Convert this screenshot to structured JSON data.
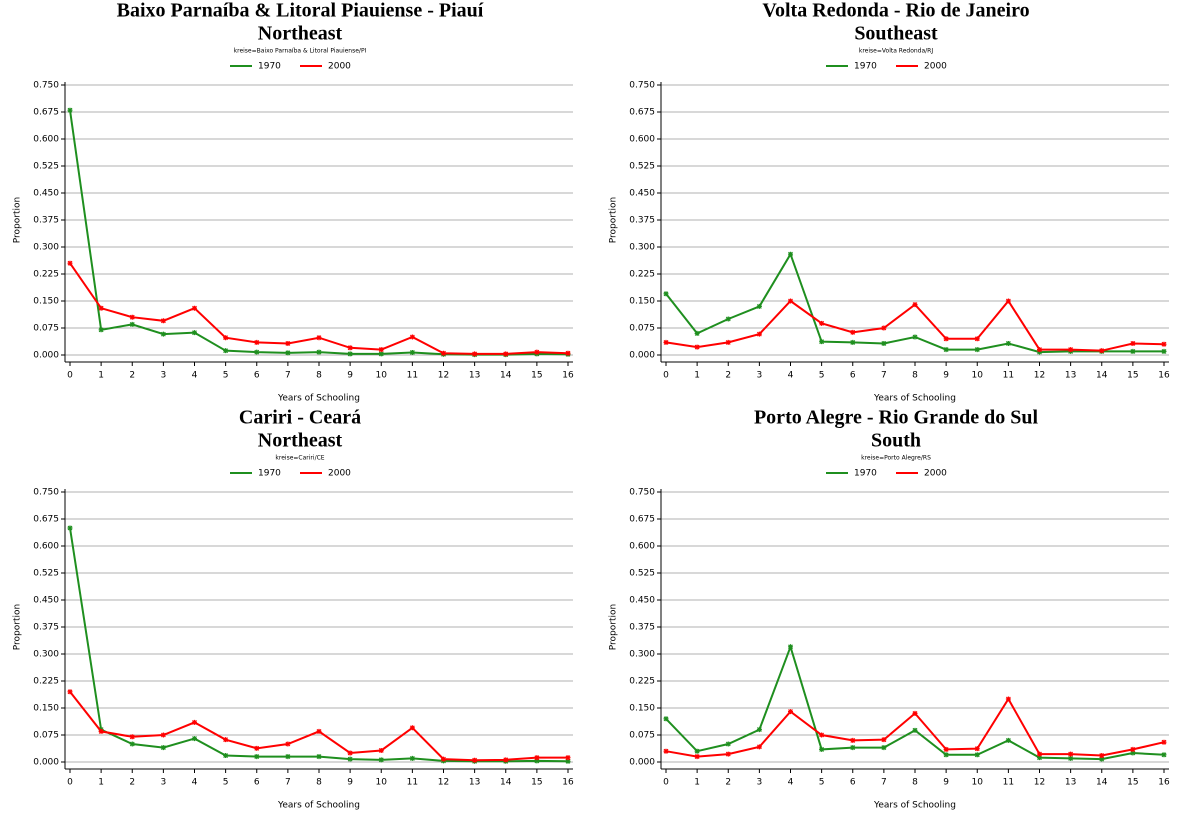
{
  "chart_data": [
    {
      "type": "line",
      "title": "Baixo Parnaíba & Litoral Piauiense - Piauí",
      "subtitle": "Northeast",
      "note": "kreise=Baixo Parnaíba & Litoral Piauiense/PI",
      "x_label": "Years of Schooling",
      "y_label": "Proportion",
      "legend": "top",
      "grid": true,
      "x": [
        0,
        1,
        2,
        3,
        4,
        5,
        6,
        7,
        8,
        9,
        10,
        11,
        12,
        13,
        14,
        15,
        16
      ],
      "xlim": [
        0,
        16
      ],
      "xticks": [
        0,
        1,
        2,
        3,
        4,
        5,
        6,
        7,
        8,
        9,
        10,
        11,
        12,
        13,
        14,
        15,
        16
      ],
      "ylim": [
        0,
        0.75
      ],
      "yticks": [
        {
          "value": 0,
          "label": "0.000"
        },
        {
          "value": 0.075,
          "label": "0.075"
        },
        {
          "value": 0.15,
          "label": "0.150"
        },
        {
          "value": 0.225,
          "label": "0.225"
        },
        {
          "value": 0.3,
          "label": "0.300"
        },
        {
          "value": 0.375,
          "label": "0.375"
        },
        {
          "value": 0.45,
          "label": "0.450"
        },
        {
          "value": 0.525,
          "label": "0.525"
        },
        {
          "value": 0.6,
          "label": "0.600"
        },
        {
          "value": 0.675,
          "label": "0.675"
        },
        {
          "value": 0.75,
          "label": "0.750"
        }
      ],
      "series": [
        {
          "name": "1970",
          "color": "#1f8f1f",
          "values": [
            0.68,
            0.07,
            0.085,
            0.058,
            0.062,
            0.012,
            0.008,
            0.006,
            0.008,
            0.003,
            0.003,
            0.007,
            0.002,
            0.001,
            0.001,
            0.003,
            0.002
          ]
        },
        {
          "name": "2000",
          "color": "#ff0000",
          "values": [
            0.255,
            0.13,
            0.105,
            0.095,
            0.13,
            0.048,
            0.035,
            0.032,
            0.048,
            0.02,
            0.015,
            0.05,
            0.005,
            0.003,
            0.003,
            0.008,
            0.005
          ]
        }
      ]
    },
    {
      "type": "line",
      "title": "Volta Redonda - Rio de Janeiro",
      "subtitle": "Southeast",
      "note": "kreise=Volta Redonda/RJ",
      "x_label": "Years of Schooling",
      "y_label": "Proportion",
      "legend": "top",
      "grid": true,
      "x": [
        0,
        1,
        2,
        3,
        4,
        5,
        6,
        7,
        8,
        9,
        10,
        11,
        12,
        13,
        14,
        15,
        16
      ],
      "xlim": [
        0,
        16
      ],
      "xticks": [
        0,
        1,
        2,
        3,
        4,
        5,
        6,
        7,
        8,
        9,
        10,
        11,
        12,
        13,
        14,
        15,
        16
      ],
      "ylim": [
        0,
        0.75
      ],
      "yticks": [
        {
          "value": 0,
          "label": "0.000"
        },
        {
          "value": 0.075,
          "label": "0.075"
        },
        {
          "value": 0.15,
          "label": "0.150"
        },
        {
          "value": 0.225,
          "label": "0.225"
        },
        {
          "value": 0.3,
          "label": "0.300"
        },
        {
          "value": 0.375,
          "label": "0.375"
        },
        {
          "value": 0.45,
          "label": "0.450"
        },
        {
          "value": 0.525,
          "label": "0.525"
        },
        {
          "value": 0.6,
          "label": "0.600"
        },
        {
          "value": 0.675,
          "label": "0.675"
        },
        {
          "value": 0.75,
          "label": "0.750"
        }
      ],
      "series": [
        {
          "name": "1970",
          "color": "#1f8f1f",
          "values": [
            0.17,
            0.06,
            0.1,
            0.135,
            0.28,
            0.037,
            0.035,
            0.032,
            0.05,
            0.015,
            0.015,
            0.032,
            0.008,
            0.01,
            0.01,
            0.01,
            0.01
          ]
        },
        {
          "name": "2000",
          "color": "#ff0000",
          "values": [
            0.035,
            0.022,
            0.035,
            0.058,
            0.15,
            0.088,
            0.063,
            0.075,
            0.14,
            0.045,
            0.045,
            0.15,
            0.015,
            0.015,
            0.012,
            0.032,
            0.03
          ]
        }
      ]
    },
    {
      "type": "line",
      "title": "Cariri - Ceará",
      "subtitle": "Northeast",
      "note": "kreise=Cariri/CE",
      "x_label": "Years of Schooling",
      "y_label": "Proportion",
      "legend": "top",
      "grid": true,
      "x": [
        0,
        1,
        2,
        3,
        4,
        5,
        6,
        7,
        8,
        9,
        10,
        11,
        12,
        13,
        14,
        15,
        16
      ],
      "xlim": [
        0,
        16
      ],
      "xticks": [
        0,
        1,
        2,
        3,
        4,
        5,
        6,
        7,
        8,
        9,
        10,
        11,
        12,
        13,
        14,
        15,
        16
      ],
      "ylim": [
        0,
        0.75
      ],
      "yticks": [
        {
          "value": 0,
          "label": "0.000"
        },
        {
          "value": 0.075,
          "label": "0.075"
        },
        {
          "value": 0.15,
          "label": "0.150"
        },
        {
          "value": 0.225,
          "label": "0.225"
        },
        {
          "value": 0.3,
          "label": "0.300"
        },
        {
          "value": 0.375,
          "label": "0.375"
        },
        {
          "value": 0.45,
          "label": "0.450"
        },
        {
          "value": 0.525,
          "label": "0.525"
        },
        {
          "value": 0.6,
          "label": "0.600"
        },
        {
          "value": 0.675,
          "label": "0.675"
        },
        {
          "value": 0.75,
          "label": "0.750"
        }
      ],
      "series": [
        {
          "name": "1970",
          "color": "#1f8f1f",
          "values": [
            0.65,
            0.09,
            0.05,
            0.04,
            0.065,
            0.018,
            0.015,
            0.015,
            0.015,
            0.008,
            0.006,
            0.01,
            0.003,
            0.002,
            0.002,
            0.003,
            0.002
          ]
        },
        {
          "name": "2000",
          "color": "#ff0000",
          "values": [
            0.195,
            0.085,
            0.07,
            0.075,
            0.11,
            0.062,
            0.038,
            0.05,
            0.085,
            0.025,
            0.032,
            0.095,
            0.008,
            0.005,
            0.006,
            0.012,
            0.012
          ]
        }
      ]
    },
    {
      "type": "line",
      "title": "Porto Alegre - Rio Grande do Sul",
      "subtitle": "South",
      "note": "kreise=Porto Alegre/RS",
      "x_label": "Years of Schooling",
      "y_label": "Proportion",
      "legend": "top",
      "grid": true,
      "x": [
        0,
        1,
        2,
        3,
        4,
        5,
        6,
        7,
        8,
        9,
        10,
        11,
        12,
        13,
        14,
        15,
        16
      ],
      "xlim": [
        0,
        16
      ],
      "xticks": [
        0,
        1,
        2,
        3,
        4,
        5,
        6,
        7,
        8,
        9,
        10,
        11,
        12,
        13,
        14,
        15,
        16
      ],
      "ylim": [
        0,
        0.75
      ],
      "yticks": [
        {
          "value": 0,
          "label": "0.000"
        },
        {
          "value": 0.075,
          "label": "0.075"
        },
        {
          "value": 0.15,
          "label": "0.150"
        },
        {
          "value": 0.225,
          "label": "0.225"
        },
        {
          "value": 0.3,
          "label": "0.300"
        },
        {
          "value": 0.375,
          "label": "0.375"
        },
        {
          "value": 0.45,
          "label": "0.450"
        },
        {
          "value": 0.525,
          "label": "0.525"
        },
        {
          "value": 0.6,
          "label": "0.600"
        },
        {
          "value": 0.675,
          "label": "0.675"
        },
        {
          "value": 0.75,
          "label": "0.750"
        }
      ],
      "series": [
        {
          "name": "1970",
          "color": "#1f8f1f",
          "values": [
            0.12,
            0.03,
            0.05,
            0.09,
            0.32,
            0.035,
            0.04,
            0.04,
            0.088,
            0.02,
            0.02,
            0.06,
            0.012,
            0.01,
            0.008,
            0.025,
            0.02
          ]
        },
        {
          "name": "2000",
          "color": "#ff0000",
          "values": [
            0.03,
            0.015,
            0.022,
            0.042,
            0.14,
            0.075,
            0.06,
            0.062,
            0.135,
            0.035,
            0.037,
            0.175,
            0.022,
            0.022,
            0.018,
            0.035,
            0.055
          ]
        }
      ]
    }
  ]
}
